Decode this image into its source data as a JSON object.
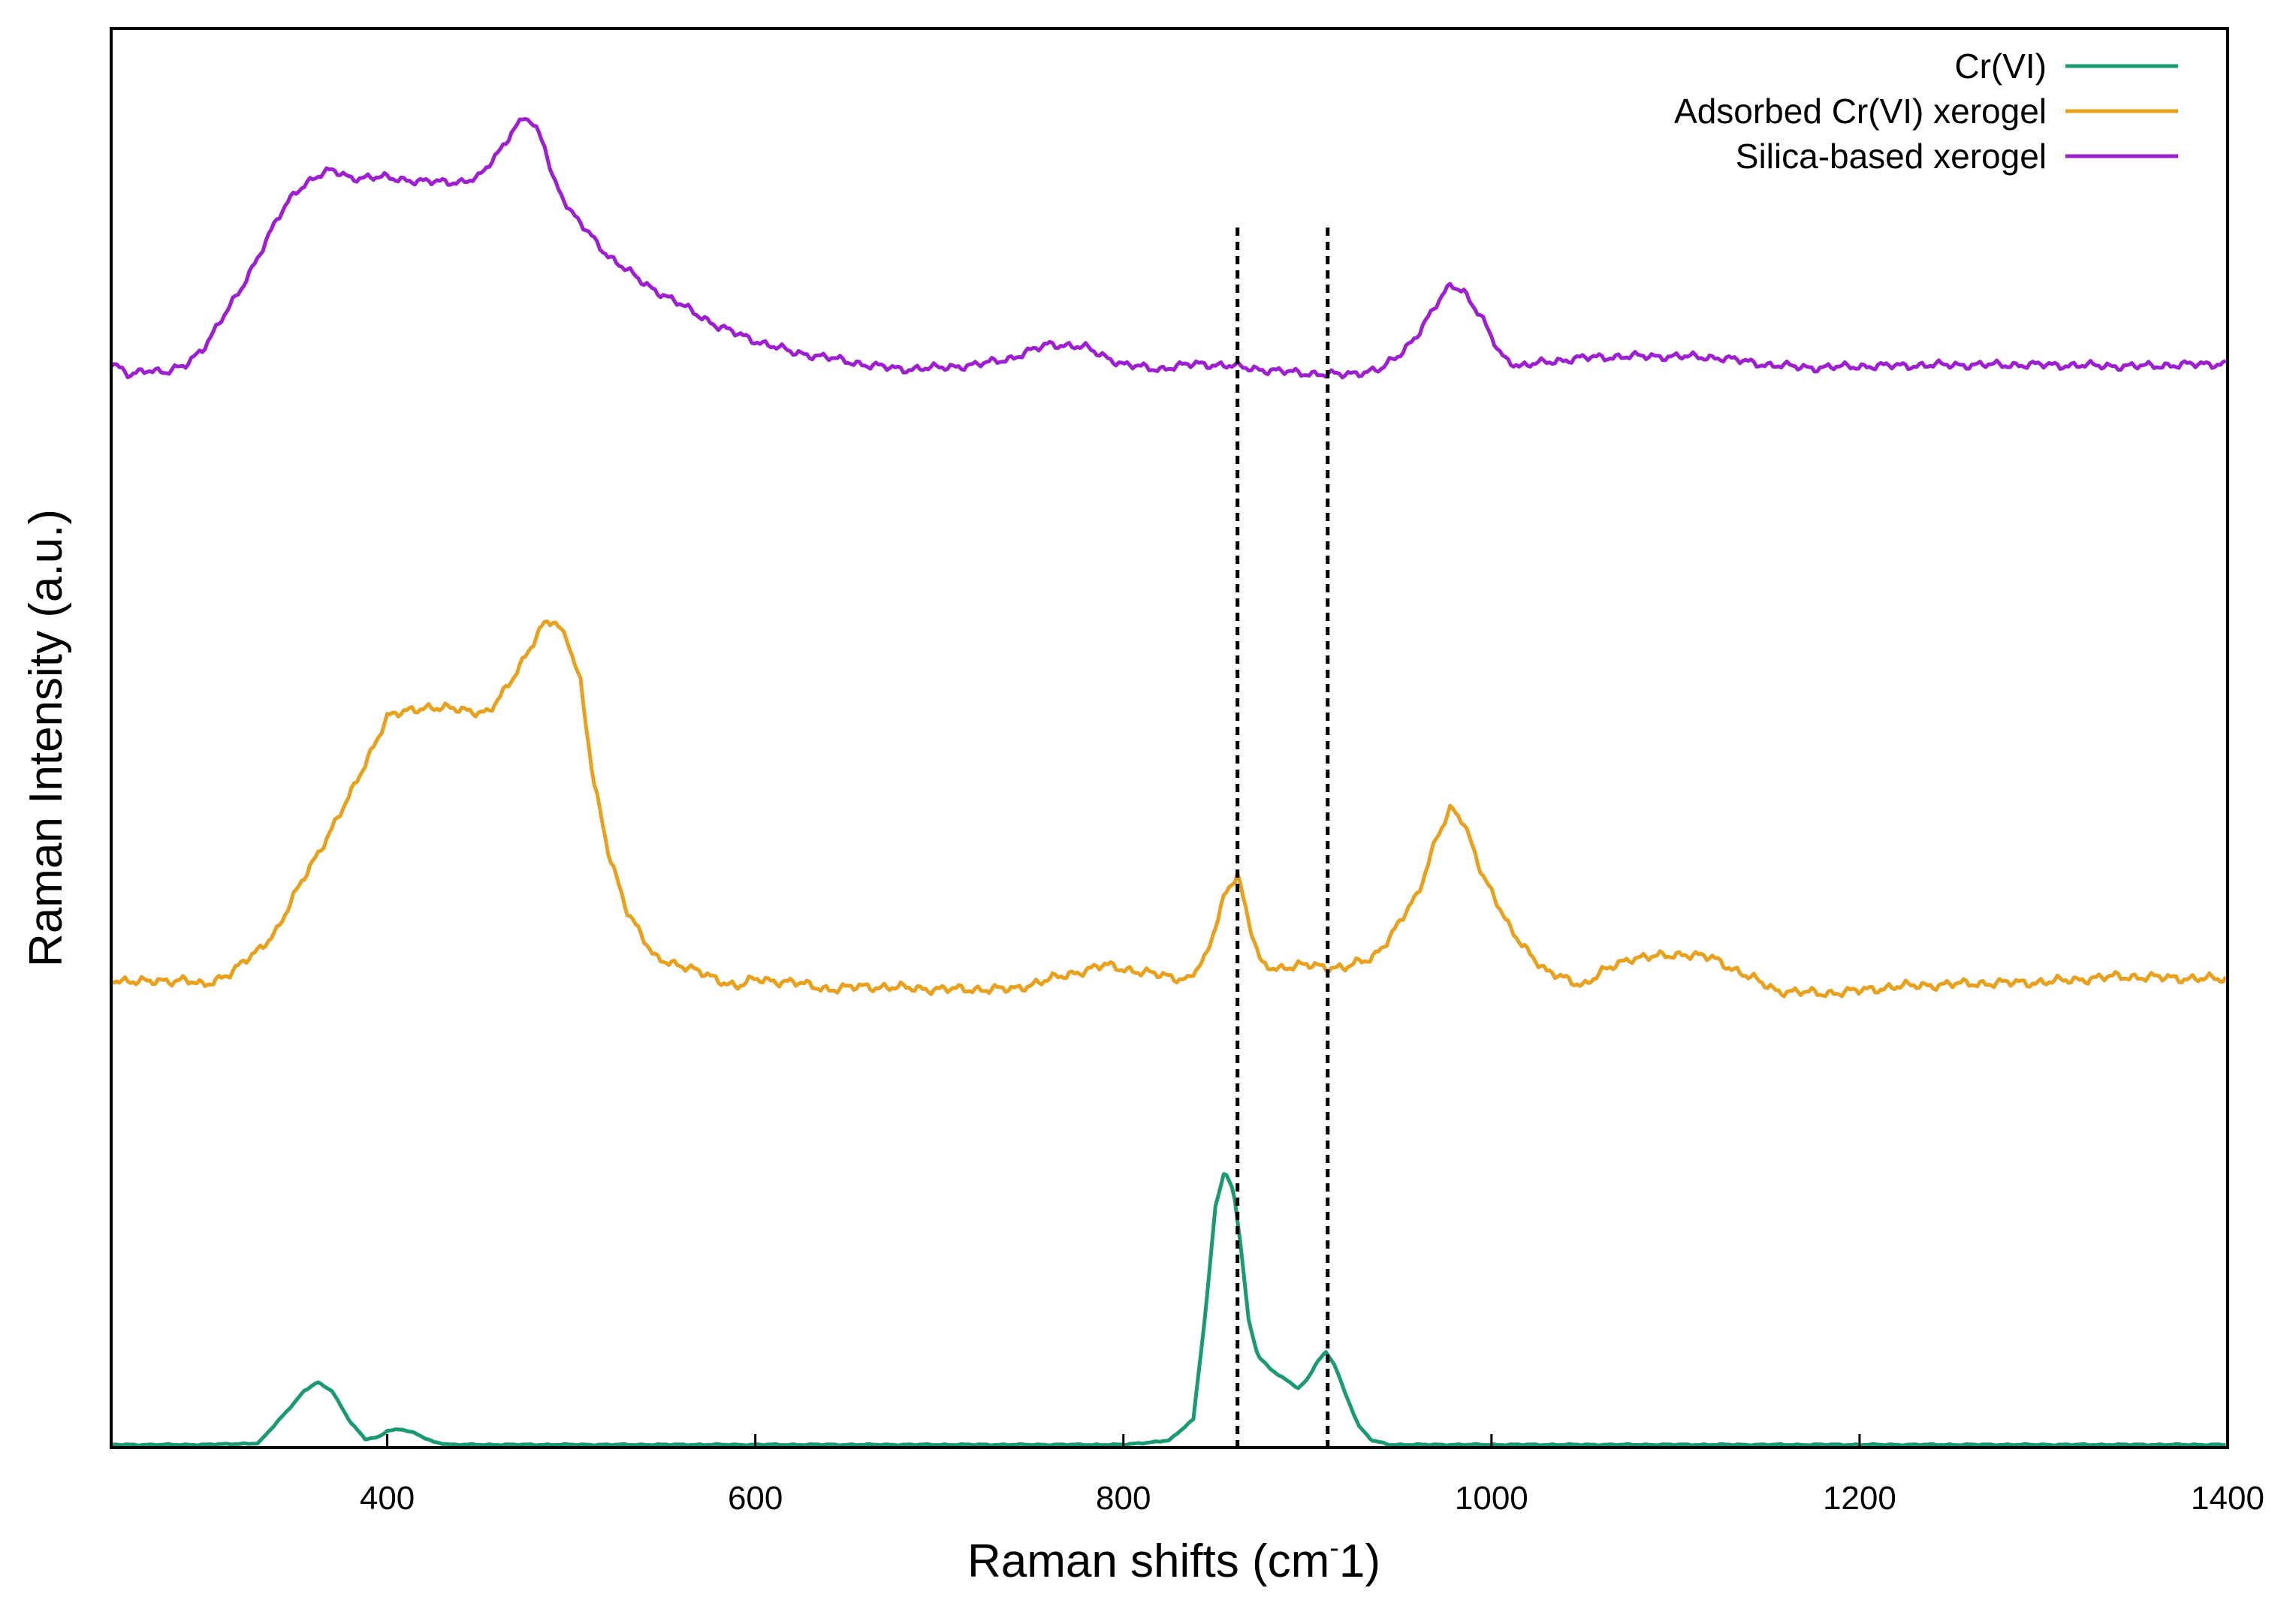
{
  "chart_data": {
    "type": "line",
    "title": "",
    "xlabel": "Raman shifts (cm-1)",
    "xlabel_main": "Raman shifts (cm",
    "xlabel_sup": "-",
    "xlabel_tail": "1)",
    "ylabel": "Raman Intensity (a.u.)",
    "xlim": [
      250,
      1400
    ],
    "ylim": [
      0,
      100
    ],
    "xticks": [
      400,
      600,
      800,
      1000,
      1200,
      1400
    ],
    "yticks_shown": false,
    "grid": false,
    "legend_position": "top-right",
    "reference_lines": [
      {
        "x": 862,
        "style": "dashed",
        "color": "#000000"
      },
      {
        "x": 911,
        "style": "dashed",
        "color": "#000000"
      }
    ],
    "series": [
      {
        "name": "Cr(VI)",
        "color": "#1a9a74",
        "noise": 0.05,
        "x": [
          250,
          300,
          330,
          345,
          355,
          362,
          370,
          380,
          388,
          395,
          400,
          408,
          415,
          425,
          435,
          450,
          500,
          600,
          700,
          800,
          825,
          838,
          845,
          850,
          855,
          860,
          864,
          868,
          873,
          880,
          888,
          895,
          900,
          905,
          910,
          915,
          920,
          928,
          935,
          945,
          960,
          1000,
          1100,
          1200,
          1300,
          1400
        ],
        "y": [
          0.2,
          0.2,
          0.3,
          2.5,
          4.0,
          4.6,
          4.0,
          1.8,
          0.6,
          0.7,
          1.2,
          1.3,
          1.0,
          0.4,
          0.2,
          0.2,
          0.2,
          0.2,
          0.2,
          0.2,
          0.5,
          2.0,
          10.0,
          17.0,
          19.5,
          18.0,
          14.0,
          9.0,
          6.5,
          5.5,
          4.8,
          4.2,
          4.8,
          6.0,
          6.7,
          5.8,
          4.0,
          1.5,
          0.5,
          0.2,
          0.2,
          0.2,
          0.2,
          0.2,
          0.2,
          0.2
        ]
      },
      {
        "name": "Adsorbed Cr(VI) xerogel",
        "color": "#e9a01c",
        "noise": 0.35,
        "x": [
          250,
          270,
          290,
          300,
          315,
          330,
          340,
          352,
          365,
          380,
          400,
          420,
          440,
          455,
          465,
          478,
          485,
          490,
          498,
          505,
          512,
          520,
          530,
          545,
          560,
          575,
          590,
          600,
          620,
          640,
          660,
          700,
          740,
          760,
          790,
          810,
          835,
          845,
          855,
          862,
          868,
          875,
          885,
          900,
          920,
          935,
          945,
          960,
          970,
          978,
          985,
          995,
          1010,
          1030,
          1050,
          1060,
          1075,
          1090,
          1105,
          1120,
          1135,
          1155,
          1180,
          1200,
          1220,
          1260,
          1300,
          1340,
          1400
        ],
        "y": [
          33.0,
          32.8,
          33.0,
          32.5,
          33.5,
          35.0,
          36.5,
          39.5,
          42.5,
          46.0,
          51.5,
          52.2,
          52.0,
          51.8,
          53.5,
          56.5,
          58.0,
          58.2,
          57.0,
          54.0,
          47.0,
          42.0,
          38.0,
          34.5,
          34.0,
          33.2,
          32.5,
          33.0,
          32.8,
          32.3,
          32.5,
          32.3,
          32.3,
          33.0,
          34.0,
          33.5,
          33.0,
          34.5,
          39.0,
          40.5,
          37.0,
          34.0,
          33.8,
          34.0,
          33.8,
          34.5,
          36.0,
          39.0,
          43.0,
          45.0,
          44.0,
          40.5,
          36.5,
          33.5,
          32.6,
          33.5,
          34.5,
          34.6,
          34.8,
          34.5,
          33.5,
          32.2,
          32.0,
          32.2,
          32.5,
          32.7,
          32.8,
          33.2,
          33.0
        ]
      },
      {
        "name": "Silica-based xerogel",
        "color": "#9d1fd1",
        "noise": 0.3,
        "x": [
          250,
          260,
          270,
          280,
          290,
          300,
          310,
          320,
          330,
          340,
          350,
          360,
          370,
          380,
          400,
          420,
          440,
          450,
          460,
          468,
          475,
          480,
          485,
          490,
          500,
          520,
          540,
          560,
          580,
          600,
          620,
          640,
          660,
          680,
          700,
          720,
          740,
          760,
          780,
          800,
          820,
          840,
          860,
          880,
          900,
          920,
          940,
          950,
          960,
          970,
          978,
          985,
          995,
          1005,
          1015,
          1030,
          1050,
          1075,
          1100,
          1125,
          1150,
          1175,
          1200,
          1250,
          1300,
          1350,
          1400
        ],
        "y": [
          76.5,
          75.5,
          76.0,
          75.8,
          76.2,
          77.5,
          79.5,
          81.5,
          84.0,
          86.5,
          88.5,
          89.5,
          90.0,
          89.5,
          89.5,
          89.2,
          89.2,
          89.5,
          91.2,
          92.8,
          93.8,
          93.0,
          92.0,
          89.5,
          87.0,
          84.0,
          82.0,
          80.5,
          79.0,
          78.0,
          77.2,
          76.8,
          76.3,
          76.0,
          76.1,
          76.3,
          76.8,
          77.8,
          77.5,
          76.3,
          76.0,
          76.4,
          76.2,
          75.9,
          75.7,
          75.6,
          76.0,
          77.0,
          78.5,
          80.5,
          82.0,
          81.5,
          79.5,
          77.0,
          76.2,
          76.5,
          76.8,
          76.9,
          76.9,
          76.8,
          76.3,
          76.1,
          76.2,
          76.3,
          76.3,
          76.2,
          76.4
        ]
      }
    ]
  }
}
